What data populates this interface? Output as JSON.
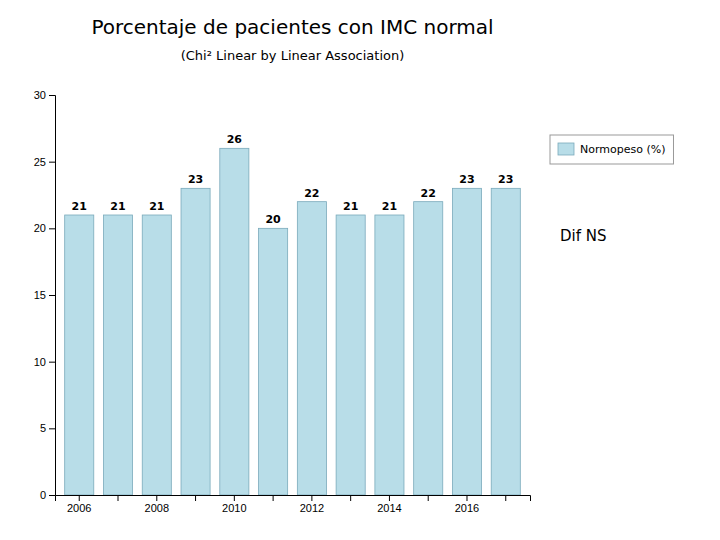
{
  "chart_data": {
    "type": "bar",
    "title": "Porcentaje de pacientes con IMC normal",
    "subtitle": "(Chi² Linear by Linear Association)",
    "categories": [
      "2006",
      null,
      "2008",
      null,
      "2010",
      null,
      "2012",
      null,
      "2014",
      null,
      "2016",
      null
    ],
    "series": [
      {
        "name": "Normopeso (%)",
        "color": "#b8dde8",
        "values": [
          21,
          21,
          21,
          23,
          26,
          20,
          22,
          21,
          21,
          22,
          23,
          23
        ]
      }
    ],
    "ylim": [
      0,
      30
    ],
    "yticks": [
      0,
      5,
      10,
      15,
      20,
      25,
      30
    ],
    "grid": false,
    "legend": "right",
    "data_labels": true,
    "annotation": "Dif NS"
  }
}
